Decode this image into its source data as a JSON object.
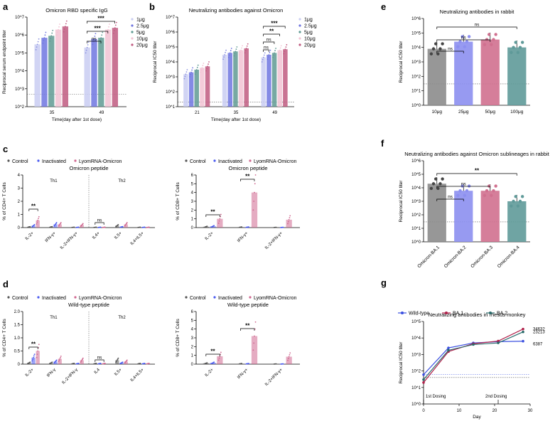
{
  "panels": {
    "a": {
      "label": "a"
    },
    "b": {
      "label": "b"
    },
    "c": {
      "label": "c"
    },
    "d": {
      "label": "d"
    },
    "e": {
      "label": "e"
    },
    "f": {
      "label": "f"
    },
    "g": {
      "label": "g"
    }
  },
  "chart_data": [
    {
      "id": "a",
      "type": "bar",
      "title": "Omicron RBD specific IgG",
      "ylabel": "Reciprocal serum endpoint titer",
      "xlabel": "Time(day after 1st dose)",
      "ylim": [
        100,
        10000000
      ],
      "yscale": "log",
      "yticks": [
        "10^2",
        "10^3",
        "10^4",
        "10^5",
        "10^6",
        "10^7"
      ],
      "categories": [
        "35",
        "49"
      ],
      "series": [
        {
          "name": "1μg",
          "color": "#c9cdf2",
          "values": [
            300000,
            200000
          ]
        },
        {
          "name": "2.5μg",
          "color": "#6f75e0",
          "values": [
            700000,
            600000
          ]
        },
        {
          "name": "5μg",
          "color": "#5f9a93",
          "values": [
            900000,
            700000
          ]
        },
        {
          "name": "10μg",
          "color": "#f2c3d4",
          "values": [
            2000000,
            2000000
          ]
        },
        {
          "name": "20μg",
          "color": "#c05a80",
          "values": [
            3000000,
            2500000
          ]
        }
      ],
      "dotted_line": 500,
      "annotations": [
        "ns",
        "***",
        "***"
      ]
    },
    {
      "id": "b",
      "type": "bar",
      "title": "Neutralizing antibodies against Omicron",
      "ylabel": "Reciprocal IC50 titer",
      "xlabel": "Time(day after 1st dose)",
      "ylim": [
        10,
        10000000
      ],
      "yscale": "log",
      "yticks": [
        "10^1",
        "10^2",
        "10^3",
        "10^4",
        "10^5",
        "10^6",
        "10^7"
      ],
      "categories": [
        "21",
        "35",
        "49"
      ],
      "series": [
        {
          "name": "1μg",
          "color": "#c9cdf2",
          "values": [
            1500,
            30000,
            20000
          ]
        },
        {
          "name": "2.5μg",
          "color": "#6f75e0",
          "values": [
            2000,
            40000,
            30000
          ]
        },
        {
          "name": "5μg",
          "color": "#5f9a93",
          "values": [
            3000,
            50000,
            40000
          ]
        },
        {
          "name": "10μg",
          "color": "#f2c3d4",
          "values": [
            4000,
            60000,
            60000
          ]
        },
        {
          "name": "20μg",
          "color": "#c05a80",
          "values": [
            5000,
            80000,
            70000
          ]
        }
      ],
      "dotted_line": 20,
      "annotations": [
        "***",
        "**",
        "ns",
        "ns"
      ]
    },
    {
      "id": "c-left",
      "type": "bar",
      "title": "Omicron peptide",
      "ylabel": "% of CD4+ T Cells",
      "ylim": [
        0,
        4
      ],
      "yticks": [
        "0",
        "1",
        "2",
        "3",
        "4"
      ],
      "categories": [
        "IL-2+",
        "IFN-γ+",
        "IL-2+IFN-γ+",
        "IL4+",
        "IL5+",
        "IL4+IL5+"
      ],
      "legend": [
        "Control",
        "Inactivated",
        "LyomRNA-Omicron"
      ],
      "series": [
        {
          "name": "Control",
          "color": "#555555",
          "values": [
            0.05,
            0.05,
            0.02,
            0.02,
            0.15,
            0.02
          ]
        },
        {
          "name": "Inactivated",
          "color": "#4a5af0",
          "values": [
            0.15,
            0.25,
            0.02,
            0.02,
            0.05,
            0.02
          ]
        },
        {
          "name": "LyomRNA-Omicron",
          "color": "#d06890",
          "values": [
            0.55,
            0.25,
            0.2,
            0.02,
            0.25,
            0.02
          ]
        }
      ],
      "group_labels": [
        "Th1",
        "Th2"
      ],
      "annotations": [
        "**",
        "ns"
      ]
    },
    {
      "id": "c-right",
      "type": "bar",
      "title": "Omicron peptide",
      "ylabel": "% of CD8+ T Cells",
      "ylim": [
        0,
        6
      ],
      "yticks": [
        "0",
        "1",
        "2",
        "3",
        "4",
        "5",
        "6"
      ],
      "categories": [
        "IL-2+",
        "IFN-γ+",
        "IL-2+IFN-γ+"
      ],
      "legend": [
        "Control",
        "Inactivated",
        "LyomRNA-Omicron"
      ],
      "series": [
        {
          "name": "Control",
          "color": "#555555",
          "values": [
            0.1,
            0.05,
            0.02
          ]
        },
        {
          "name": "Inactivated",
          "color": "#4a5af0",
          "values": [
            0.15,
            0.05,
            0.02
          ]
        },
        {
          "name": "LyomRNA-Omicron",
          "color": "#d06890",
          "values": [
            1.0,
            4.0,
            0.9
          ]
        }
      ],
      "annotations": [
        "**",
        "**"
      ]
    },
    {
      "id": "d-left",
      "type": "bar",
      "title": "Wild-type peptide",
      "ylabel": "% of CD4+ T Cells",
      "ylim": [
        0,
        2
      ],
      "yticks": [
        "0",
        "0.5",
        "1.0",
        "1.5",
        "2.0"
      ],
      "categories": [
        "IL-2+",
        "IFN-γ",
        "IL-2+IFN-γ",
        "IL4",
        "IL5+",
        "IL4+IL5+"
      ],
      "legend": [
        "Control",
        "Inactivated",
        "LyomRNA-Omicron"
      ],
      "series": [
        {
          "name": "Control",
          "color": "#555555",
          "values": [
            0.05,
            0.05,
            0.02,
            0.02,
            0.15,
            0.02
          ]
        },
        {
          "name": "Inactivated",
          "color": "#4a5af0",
          "values": [
            0.25,
            0.1,
            0.02,
            0.02,
            0.05,
            0.02
          ]
        },
        {
          "name": "LyomRNA-Omicron",
          "color": "#d06890",
          "values": [
            0.5,
            0.2,
            0.15,
            0.02,
            0.1,
            0.02
          ]
        }
      ],
      "group_labels": [
        "Th1",
        "Th2"
      ],
      "annotations": [
        "**",
        "ns"
      ]
    },
    {
      "id": "d-right",
      "type": "bar",
      "title": "Wild-type peptide",
      "ylabel": "% of CD8+ T Cells",
      "ylim": [
        0,
        6
      ],
      "yticks": [
        "0",
        "1",
        "2",
        "3",
        "4",
        "5",
        "6"
      ],
      "categories": [
        "IL-2+",
        "IFN-γ+",
        "IL-2+IFN-γ+"
      ],
      "legend": [
        "Control",
        "Inactivated",
        "LyomRNA-Omicron"
      ],
      "series": [
        {
          "name": "Control",
          "color": "#555555",
          "values": [
            0.1,
            0.05,
            0.02
          ]
        },
        {
          "name": "Inactivated",
          "color": "#4a5af0",
          "values": [
            0.15,
            0.05,
            0.02
          ]
        },
        {
          "name": "LyomRNA-Omicron",
          "color": "#d06890",
          "values": [
            0.9,
            3.2,
            0.85
          ]
        }
      ],
      "annotations": [
        "**",
        "**"
      ]
    },
    {
      "id": "e",
      "type": "bar",
      "title": "Neutralizing antibodies in rabbit",
      "ylabel": "Reciprocal IC50 titer",
      "ylim": [
        1,
        1000000
      ],
      "yscale": "log",
      "yticks": [
        "10^0",
        "10^1",
        "10^2",
        "10^3",
        "10^4",
        "10^5",
        "10^6"
      ],
      "categories": [
        "10μg",
        "25μg",
        "50μg",
        "100μg"
      ],
      "colors": [
        "#8c8c8c",
        "#8c8ff0",
        "#d0708f",
        "#5f9a99"
      ],
      "values": [
        8000,
        25000,
        35000,
        10000
      ],
      "dotted_line": 30,
      "annotations": [
        "ns",
        "ns",
        "ns"
      ]
    },
    {
      "id": "f",
      "type": "bar",
      "title": "Neutralizing antibodies against Omicron sublineages in rabbit",
      "ylabel": "Reciprocal IC50 titer",
      "ylim": [
        1,
        1000000
      ],
      "yscale": "log",
      "yticks": [
        "10^0",
        "10^1",
        "10^2",
        "10^3",
        "10^4",
        "10^5",
        "10^6"
      ],
      "categories": [
        "Omicron-BA.1",
        "Omicron-BA.2",
        "Omicron-BA.3",
        "Omicron-BA.4"
      ],
      "colors": [
        "#8c8c8c",
        "#8c8ff0",
        "#d0708f",
        "#5f9a99"
      ],
      "values": [
        20000,
        6000,
        6000,
        1000
      ],
      "dotted_line": 30,
      "annotations": [
        "ns",
        "ns",
        "**"
      ]
    },
    {
      "id": "g",
      "type": "line",
      "title": "Neutralizing antibodies in rhesus monkey",
      "ylabel": "Reciprocal IC50 titer",
      "xlabel": "Day",
      "ylim": [
        1,
        100000
      ],
      "yscale": "log",
      "yticks": [
        "10^0",
        "10^1",
        "10^2",
        "10^3",
        "10^4",
        "10^5"
      ],
      "xlim": [
        0,
        30
      ],
      "xticks": [
        "0",
        "10",
        "20",
        "30"
      ],
      "x": [
        0,
        7,
        14,
        21,
        28
      ],
      "series": [
        {
          "name": "Wild-type",
          "color": "#3a4fe0",
          "values": [
            60,
            2500,
            5000,
            6000,
            6387
          ]
        },
        {
          "name": "BA.1",
          "color": "#b0204a",
          "values": [
            20,
            1500,
            4500,
            6500,
            34632
          ]
        },
        {
          "name": "BA.2",
          "color": "#2a6b6b",
          "values": [
            30,
            1800,
            4000,
            5000,
            23213
          ]
        }
      ],
      "end_labels": [
        "34632",
        "23213",
        "6387"
      ],
      "dosing_labels": [
        "1st Dosing",
        "2nd Dosing"
      ],
      "dotted_line": 40
    }
  ]
}
